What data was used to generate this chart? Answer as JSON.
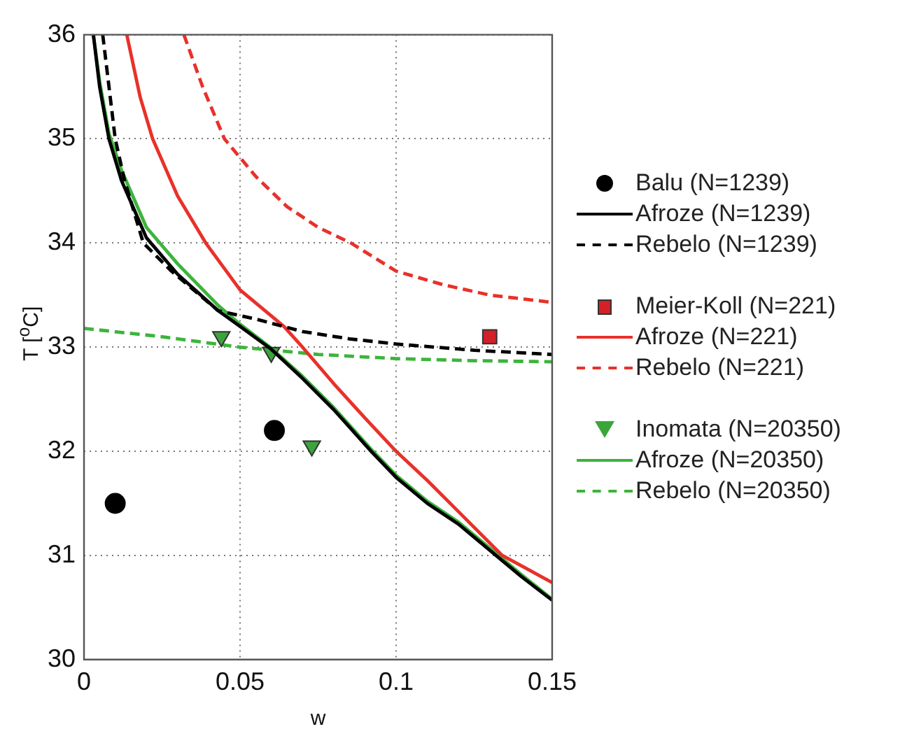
{
  "chart_data": {
    "type": "line",
    "xlabel": "w",
    "ylabel": "T [$^{o}$C]",
    "xlim": [
      0,
      0.15
    ],
    "xticks": [
      0,
      0.05,
      0.1,
      0.15
    ],
    "ylim": [
      30,
      36
    ],
    "yticks": [
      30,
      31,
      32,
      33,
      34,
      35,
      36
    ],
    "grid": true,
    "legend": "right",
    "series": [
      {
        "name": "Balu (N=1239)",
        "type": "scatter",
        "marker": "circle",
        "color": "#000000",
        "x": [
          0.01,
          0.061
        ],
        "values": [
          31.5,
          32.2
        ]
      },
      {
        "name": "Afroze (N=1239)",
        "line_style": "solid",
        "color": "#000000",
        "x": [
          0.003,
          0.005,
          0.008,
          0.012,
          0.02,
          0.03,
          0.043,
          0.05,
          0.06,
          0.07,
          0.08,
          0.092,
          0.1,
          0.11,
          0.12,
          0.132,
          0.14,
          0.15
        ],
        "values": [
          36,
          35.5,
          35.0,
          34.6,
          34.05,
          33.7,
          33.35,
          33.2,
          32.98,
          32.7,
          32.4,
          32.0,
          31.75,
          31.5,
          31.3,
          31.0,
          30.8,
          30.57
        ]
      },
      {
        "name": "Rebelo (N=1239)",
        "line_style": "dashed",
        "color": "#000000",
        "x": [
          0.006,
          0.008,
          0.01,
          0.013,
          0.019,
          0.028,
          0.043,
          0.055,
          0.07,
          0.085,
          0.1,
          0.125,
          0.15
        ],
        "values": [
          36,
          35.5,
          35.0,
          34.6,
          34.0,
          33.73,
          33.35,
          33.27,
          33.15,
          33.08,
          33.03,
          32.97,
          32.93
        ]
      },
      {
        "name": "Meier-Koll (N=221)",
        "type": "scatter",
        "marker": "square",
        "color": "#d42027",
        "x": [
          0.13
        ],
        "values": [
          33.1
        ]
      },
      {
        "name": "Afroze (N=221)",
        "line_style": "solid",
        "color": "#e8312a",
        "x": [
          0.0137,
          0.018,
          0.022,
          0.03,
          0.039,
          0.05,
          0.064,
          0.07,
          0.08,
          0.09,
          0.1,
          0.11,
          0.12,
          0.134,
          0.15
        ],
        "values": [
          36,
          35.4,
          35.0,
          34.45,
          34.0,
          33.55,
          33.2,
          33.0,
          32.65,
          32.32,
          32.0,
          31.72,
          31.42,
          31.0,
          30.74
        ]
      },
      {
        "name": "Rebelo (N=221)",
        "line_style": "dashed",
        "color": "#e8312a",
        "x": [
          0.032,
          0.038,
          0.045,
          0.055,
          0.065,
          0.075,
          0.0855,
          0.1,
          0.115,
          0.13,
          0.15
        ],
        "values": [
          36,
          35.5,
          35.0,
          34.64,
          34.35,
          34.15,
          34.0,
          33.73,
          33.6,
          33.5,
          33.43
        ]
      },
      {
        "name": "Inomata (N=20350)",
        "type": "scatter",
        "marker": "triangle",
        "color": "#3aa63a",
        "x": [
          0.044,
          0.06,
          0.073
        ],
        "values": [
          33.1,
          32.95,
          32.05
        ]
      },
      {
        "name": "Afroze (N=20350)",
        "line_style": "solid",
        "color": "#3cb43c",
        "x": [
          0.003,
          0.005,
          0.008,
          0.012,
          0.02,
          0.03,
          0.043,
          0.05,
          0.06,
          0.07,
          0.08,
          0.092,
          0.1,
          0.11,
          0.12,
          0.132,
          0.14,
          0.15
        ],
        "values": [
          36,
          35.55,
          35.05,
          34.7,
          34.15,
          33.8,
          33.4,
          33.22,
          32.99,
          32.72,
          32.42,
          32.02,
          31.77,
          31.52,
          31.32,
          31.02,
          30.82,
          30.58
        ]
      },
      {
        "name": "Rebelo (N=20350)",
        "line_style": "dashed",
        "color": "#3cb43c",
        "x": [
          0,
          0.025,
          0.05,
          0.075,
          0.1,
          0.125,
          0.15
        ],
        "values": [
          33.18,
          33.1,
          33.0,
          32.93,
          32.89,
          32.87,
          32.86
        ]
      }
    ]
  }
}
